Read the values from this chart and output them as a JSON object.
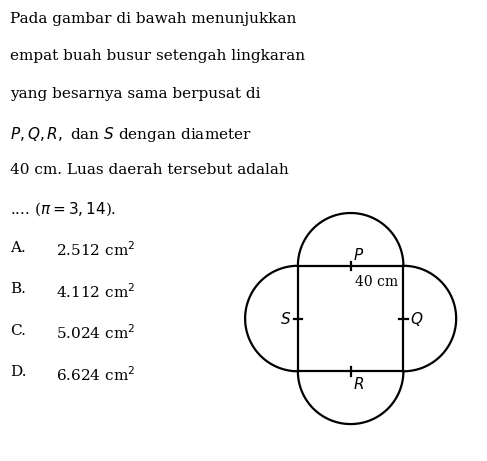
{
  "lines": [
    "Pada gambar di bawah menunjukkan",
    "empat buah busur setengah lingkaran",
    "yang besarnya sama berpusat di",
    "$P, Q, R,$ dan $S$ dengan diameter",
    "40 cm. Luas daerah tersebut adalah",
    ".... ($\\pi = 3,14$)."
  ],
  "options": [
    {
      "label": "A.",
      "value": "2.512 cm$^2$"
    },
    {
      "label": "B.",
      "value": "4.112 cm$^2$"
    },
    {
      "label": "C.",
      "value": "5.024 cm$^2$"
    },
    {
      "label": "D.",
      "value": "6.624 cm$^2$"
    }
  ],
  "diagram": {
    "r": 1.0,
    "linewidth": 1.6,
    "color": "#000000",
    "tick": 0.08,
    "label_fontsize": 11,
    "diam_label": "40 cm",
    "diam_fontsize": 10
  },
  "text_fontsize": 11,
  "opt_fontsize": 11,
  "background_color": "#ffffff",
  "text_color": "#000000"
}
